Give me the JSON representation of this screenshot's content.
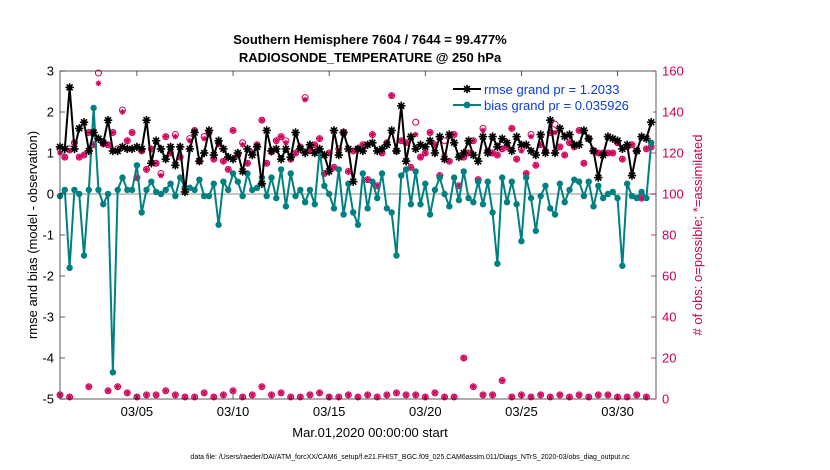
{
  "chart_data": {
    "type": "line",
    "title": "Southern Hemisphere 7604 / 7644 = 99.477%",
    "subtitle": "RADIOSONDE_TEMPERATURE @ 250 hPa",
    "xlabel": "Mar.01,2020 00:00:00 start",
    "ylabel": "rmse and bias (model - observation)",
    "ylabel_right": "# of obs: o=possible; *=assimilated",
    "ylim": [
      -5,
      3
    ],
    "ylim_right": [
      0,
      160
    ],
    "xlim": [
      1,
      32
    ],
    "xtick_values": [
      5,
      10,
      15,
      20,
      25,
      30
    ],
    "xtick_labels": [
      "03/05",
      "03/10",
      "03/15",
      "03/20",
      "03/25",
      "03/30"
    ],
    "ytick_labels": [
      "-5",
      "-4",
      "-3",
      "-2",
      "-1",
      "0",
      "1",
      "2",
      "3"
    ],
    "ytick_labels_right": [
      "0",
      "20",
      "40",
      "60",
      "80",
      "100",
      "120",
      "140",
      "160"
    ],
    "legend": [
      "rmse grand pr = 1.2033",
      "bias grand pr = 0.035926"
    ],
    "footer": "data file: /Users/raeder/DAI/ATM_forcXX/CAM6_setup/f.e21.FHIST_BGC.f09_025.CAM6assim.011/Diags_NTrS_2020-03/obs_diag_output.nc",
    "colors": {
      "rmse": "#000000",
      "bias": "#008080",
      "obs": "#d1005a",
      "zero": "#b3b3b3"
    },
    "x": [
      1.0,
      1.25,
      1.5,
      1.75,
      2.0,
      2.25,
      2.5,
      2.75,
      3.0,
      3.25,
      3.5,
      3.75,
      4.0,
      4.25,
      4.5,
      4.75,
      5.0,
      5.25,
      5.5,
      5.75,
      6.0,
      6.25,
      6.5,
      6.75,
      7.0,
      7.25,
      7.5,
      7.75,
      8.0,
      8.25,
      8.5,
      8.75,
      9.0,
      9.25,
      9.5,
      9.75,
      10.0,
      10.25,
      10.5,
      10.75,
      11.0,
      11.25,
      11.5,
      11.75,
      12.0,
      12.25,
      12.5,
      12.75,
      13.0,
      13.25,
      13.5,
      13.75,
      14.0,
      14.25,
      14.5,
      14.75,
      15.0,
      15.25,
      15.5,
      15.75,
      16.0,
      16.25,
      16.5,
      16.75,
      17.0,
      17.25,
      17.5,
      17.75,
      18.0,
      18.25,
      18.5,
      18.75,
      19.0,
      19.25,
      19.5,
      19.75,
      20.0,
      20.25,
      20.5,
      20.75,
      21.0,
      21.25,
      21.5,
      21.75,
      22.0,
      22.25,
      22.5,
      22.75,
      23.0,
      23.25,
      23.5,
      23.75,
      24.0,
      24.25,
      24.5,
      24.75,
      25.0,
      25.25,
      25.5,
      25.75,
      26.0,
      26.25,
      26.5,
      26.75,
      27.0,
      27.25,
      27.5,
      27.75,
      28.0,
      28.25,
      28.5,
      28.75,
      29.0,
      29.25,
      29.5,
      29.75,
      30.0,
      30.25,
      30.5,
      30.75,
      31.0,
      31.25,
      31.5,
      31.75
    ],
    "series": [
      {
        "name": "rmse",
        "values": [
          1.15,
          1.1,
          2.6,
          1.1,
          1.6,
          1.75,
          1.05,
          1.5,
          1.35,
          1.25,
          1.8,
          1.05,
          1.05,
          1.15,
          1.1,
          1.1,
          1.15,
          1.1,
          1.8,
          0.75,
          1.3,
          1.1,
          0.85,
          1.15,
          0.7,
          1.15,
          0.05,
          1.1,
          1.5,
          0.8,
          1.0,
          1.55,
          0.95,
          1.3,
          1.1,
          0.9,
          0.85,
          1.0,
          0.55,
          1.1,
          0.95,
          1.15,
          0.25,
          1.55,
          1.05,
          1.1,
          0.85,
          1.1,
          0.9,
          1.5,
          1.1,
          1.0,
          1.2,
          1.0,
          1.1,
          0.95,
          0.55,
          1.55,
          0.95,
          1.5,
          1.1,
          0.3,
          1.1,
          1.05,
          1.2,
          1.25,
          1.05,
          1.1,
          1.2,
          1.55,
          1.05,
          2.15,
          0.8,
          1.4,
          1.1,
          1.2,
          1.15,
          1.3,
          1.0,
          1.4,
          0.85,
          1.45,
          1.25,
          0.9,
          1.0,
          1.3,
          0.95,
          0.8,
          1.4,
          1.0,
          1.4,
          1.15,
          1.35,
          1.25,
          1.05,
          1.4,
          1.2,
          1.2,
          1.05,
          0.95,
          1.45,
          1.0,
          1.8,
          1.0,
          1.6,
          1.4,
          1.45,
          1.2,
          1.2,
          1.55,
          1.35,
          1.05,
          0.4,
          0.95,
          1.4,
          1.35,
          1.3,
          1.1,
          1.2,
          0.45,
          1.05,
          1.4,
          1.35,
          1.75
        ]
      },
      {
        "name": "bias",
        "values": [
          -0.05,
          0.1,
          -1.8,
          0.1,
          0.0,
          -1.5,
          0.1,
          2.1,
          0.1,
          -0.25,
          0.0,
          -4.35,
          0.1,
          0.4,
          0.1,
          0.1,
          0.7,
          -0.45,
          0.1,
          0.3,
          0.05,
          0.0,
          0.1,
          0.25,
          -0.05,
          0.4,
          0.15,
          0.15,
          0.1,
          0.35,
          -0.05,
          -0.05,
          0.25,
          -0.75,
          0.3,
          0.1,
          0.5,
          0.3,
          -0.05,
          0.5,
          0.1,
          0.15,
          0.4,
          -0.05,
          0.4,
          -0.1,
          0.6,
          -0.3,
          0.5,
          -0.05,
          0.1,
          -0.2,
          0.1,
          -0.25,
          1.05,
          0.2,
          0.0,
          -0.35,
          0.6,
          -0.5,
          0.25,
          -0.45,
          -0.75,
          0.5,
          -0.35,
          0.3,
          -0.1,
          0.5,
          -0.35,
          -0.45,
          -1.5,
          0.45,
          0.6,
          -0.25,
          0.55,
          -0.25,
          0.25,
          -0.5,
          0.1,
          0.4,
          0.0,
          -0.3,
          0.4,
          -0.15,
          0.55,
          -0.1,
          -0.2,
          0.3,
          -0.25,
          0.3,
          -0.45,
          -1.7,
          0.4,
          -0.2,
          0.3,
          -0.25,
          -1.15,
          0.4,
          -0.1,
          -0.9,
          -0.05,
          0.2,
          -0.35,
          -0.5,
          0.25,
          -0.2,
          0.1,
          0.35,
          0.3,
          -0.05,
          0.3,
          -0.3,
          0.2,
          -0.1,
          0.0,
          0.05,
          -0.1,
          -1.75,
          0.25,
          -0.05,
          -0.1,
          0.05,
          -0.1,
          1.25
        ]
      }
    ],
    "obs_possible": [
      122,
      118,
      122,
      125,
      118,
      119,
      130,
      124,
      159,
      125,
      124,
      130,
      122,
      141,
      126,
      130,
      108,
      121,
      112,
      122,
      115,
      110,
      128,
      120,
      129,
      118,
      103,
      127,
      131,
      116,
      128,
      130,
      117,
      125,
      116,
      112,
      131,
      119,
      125,
      115,
      120,
      124,
      136,
      115,
      121,
      126,
      128,
      126,
      117,
      120,
      123,
      147,
      121,
      124,
      127,
      110,
      120,
      113,
      122,
      130,
      111,
      121,
      122,
      124,
      107,
      129,
      104,
      120,
      125,
      148,
      121,
      126,
      125,
      113,
      135,
      118,
      120,
      130,
      124,
      109,
      126,
      116,
      129,
      104,
      118,
      120,
      126,
      107,
      132,
      121,
      120,
      119,
      122,
      123,
      132,
      117,
      122,
      110,
      129,
      114,
      124,
      121,
      130,
      134,
      123,
      119,
      125,
      123,
      131,
      115,
      127,
      121,
      120,
      120,
      120,
      120,
      125,
      117,
      123,
      124,
      121,
      98,
      122,
      123
    ],
    "obs_assimilated": [
      120,
      118,
      121,
      125,
      118,
      119,
      130,
      124,
      154,
      124,
      124,
      130,
      121,
      140,
      126,
      130,
      108,
      121,
      112,
      122,
      115,
      109,
      128,
      120,
      128,
      118,
      103,
      126,
      131,
      116,
      127,
      129,
      117,
      124,
      116,
      112,
      131,
      119,
      124,
      115,
      120,
      124,
      136,
      115,
      120,
      126,
      128,
      125,
      117,
      120,
      123,
      146,
      121,
      124,
      127,
      110,
      120,
      113,
      121,
      130,
      111,
      121,
      122,
      124,
      107,
      129,
      104,
      120,
      125,
      148,
      121,
      126,
      125,
      113,
      129,
      118,
      120,
      130,
      124,
      109,
      119,
      116,
      129,
      104,
      118,
      120,
      126,
      107,
      131,
      121,
      120,
      119,
      122,
      123,
      132,
      117,
      121,
      110,
      128,
      114,
      124,
      121,
      130,
      130,
      123,
      119,
      125,
      123,
      131,
      115,
      127,
      121,
      120,
      120,
      120,
      120,
      125,
      117,
      123,
      124,
      121,
      98,
      122,
      123
    ],
    "obs_bottom_x": [
      1.0,
      1.5,
      2.5,
      3.5,
      4.0,
      4.5,
      5.0,
      5.5,
      6.0,
      6.5,
      7.0,
      7.5,
      8.0,
      8.5,
      9.0,
      9.5,
      10.0,
      10.5,
      11.0,
      11.5,
      12.0,
      12.5,
      13.0,
      13.5,
      14.0,
      14.5,
      15.0,
      15.5,
      16.0,
      16.5,
      17.0,
      17.5,
      18.0,
      18.5,
      19.0,
      19.5,
      20.0,
      20.5,
      21.0,
      21.5,
      22.0,
      22.5,
      23.0,
      23.5,
      24.0,
      24.5,
      25.0,
      25.5,
      26.0,
      26.5,
      27.0,
      27.5,
      28.0,
      28.5,
      29.0,
      29.5,
      30.0,
      30.5,
      31.0,
      31.5
    ],
    "obs_bottom_y": [
      2,
      1,
      6,
      4,
      6,
      3,
      1,
      2,
      2,
      4,
      2,
      1,
      1,
      3,
      1,
      2,
      4,
      1,
      2,
      6,
      2,
      3,
      1,
      1,
      2,
      3,
      1,
      1,
      2,
      1,
      2,
      1,
      2,
      3,
      2,
      2,
      1,
      3,
      1,
      1,
      20,
      6,
      2,
      2,
      9,
      1,
      2,
      1,
      2,
      1,
      2,
      1,
      2,
      1,
      2,
      2,
      1,
      1,
      2,
      1
    ]
  }
}
